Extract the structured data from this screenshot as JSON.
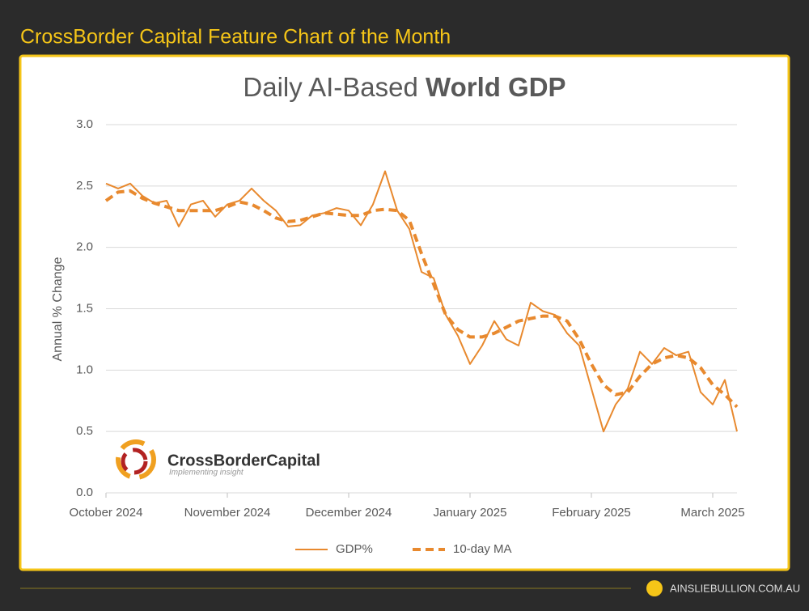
{
  "header": {
    "title": "CrossBorder Capital Feature Chart of the Month"
  },
  "chart_data": {
    "type": "line",
    "title": {
      "light": "Daily AI-Based",
      "bold": "World GDP"
    },
    "y_label": "Annual % Change",
    "categories": [
      "October 2024",
      null,
      null,
      null,
      null,
      null,
      null,
      null,
      null,
      null,
      "November 2024",
      null,
      null,
      null,
      null,
      null,
      null,
      null,
      null,
      null,
      "December 2024",
      null,
      null,
      null,
      null,
      null,
      null,
      null,
      null,
      null,
      "January 2025",
      null,
      null,
      null,
      null,
      null,
      null,
      null,
      null,
      null,
      "February 2025",
      null,
      null,
      null,
      null,
      null,
      null,
      null,
      null,
      null,
      "March 2025",
      null,
      null
    ],
    "series": [
      {
        "name": "GDP%",
        "color": "#e8892e",
        "dash": false,
        "values": [
          2.52,
          2.48,
          2.52,
          2.42,
          2.36,
          2.38,
          2.17,
          2.35,
          2.38,
          2.25,
          2.35,
          2.38,
          2.48,
          2.38,
          2.3,
          2.17,
          2.18,
          2.26,
          2.28,
          2.32,
          2.3,
          2.18,
          2.35,
          2.62,
          2.3,
          2.15,
          1.8,
          1.75,
          1.45,
          1.28,
          1.05,
          1.2,
          1.4,
          1.25,
          1.2,
          1.55,
          1.48,
          1.45,
          1.3,
          1.2,
          0.85,
          0.5,
          0.72,
          0.85,
          1.15,
          1.05,
          1.18,
          1.12,
          1.15,
          0.82,
          0.72,
          0.92,
          0.5
        ]
      },
      {
        "name": "10-day MA",
        "color": "#e8892e",
        "dash": true,
        "values": [
          2.38,
          2.45,
          2.46,
          2.4,
          2.36,
          2.33,
          2.3,
          2.3,
          2.3,
          2.3,
          2.33,
          2.37,
          2.35,
          2.3,
          2.24,
          2.21,
          2.22,
          2.25,
          2.28,
          2.27,
          2.26,
          2.26,
          2.3,
          2.31,
          2.3,
          2.22,
          1.95,
          1.7,
          1.45,
          1.33,
          1.27,
          1.27,
          1.3,
          1.35,
          1.4,
          1.42,
          1.44,
          1.44,
          1.4,
          1.25,
          1.05,
          0.88,
          0.8,
          0.82,
          0.95,
          1.05,
          1.1,
          1.12,
          1.1,
          1.02,
          0.88,
          0.8,
          0.7
        ]
      }
    ],
    "ylim": [
      0,
      3
    ],
    "yticks": [
      {
        "value": 0,
        "label": "0.0"
      },
      {
        "value": 0.5,
        "label": "0.5"
      },
      {
        "value": 1,
        "label": "1.0"
      },
      {
        "value": 1.5,
        "label": "1.5"
      },
      {
        "value": 2,
        "label": "2.0"
      },
      {
        "value": 2.5,
        "label": "2.5"
      },
      {
        "value": 3,
        "label": "3.0"
      }
    ],
    "grid": true,
    "legend": "bottom"
  },
  "logo": {
    "name": "CrossBorderCapital",
    "tagline": "Implementing insight"
  },
  "footer": {
    "site": "AINSLIEBULLION.COM.AU"
  }
}
